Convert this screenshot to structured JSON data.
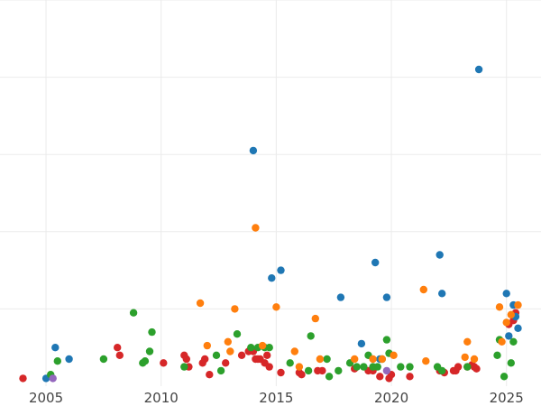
{
  "chart_data": {
    "type": "scatter",
    "title": "",
    "xlabel": "",
    "ylabel": "",
    "xlim": [
      2003.0,
      2026.5
    ],
    "ylim": [
      0,
      100
    ],
    "x_ticks": [
      2005,
      2010,
      2015,
      2020,
      2025
    ],
    "y_gridlines": [
      20,
      40,
      60,
      80,
      100
    ],
    "grid": true,
    "legend": "none",
    "series": [
      {
        "color": "#d62728",
        "points": [
          [
            2004.0,
            2
          ],
          [
            2008.1,
            10
          ],
          [
            2008.2,
            8
          ],
          [
            2010.1,
            6
          ],
          [
            2011.0,
            8
          ],
          [
            2011.1,
            7
          ],
          [
            2011.2,
            5
          ],
          [
            2011.8,
            6
          ],
          [
            2011.9,
            7
          ],
          [
            2012.1,
            3
          ],
          [
            2012.8,
            6
          ],
          [
            2013.5,
            8
          ],
          [
            2013.8,
            9
          ],
          [
            2014.0,
            9
          ],
          [
            2014.1,
            7
          ],
          [
            2014.2,
            7
          ],
          [
            2014.3,
            7
          ],
          [
            2014.5,
            6
          ],
          [
            2014.6,
            8
          ],
          [
            2014.7,
            5
          ],
          [
            2015.2,
            3.5
          ],
          [
            2016.0,
            3.5
          ],
          [
            2016.1,
            3
          ],
          [
            2016.8,
            4
          ],
          [
            2017.0,
            4
          ],
          [
            2018.4,
            4.5
          ],
          [
            2019.0,
            4
          ],
          [
            2019.2,
            4
          ],
          [
            2019.5,
            2.5
          ],
          [
            2019.9,
            2
          ],
          [
            2020.0,
            3
          ],
          [
            2020.8,
            2.5
          ],
          [
            2022.1,
            4
          ],
          [
            2022.3,
            3.5
          ],
          [
            2022.7,
            4
          ],
          [
            2022.8,
            4
          ],
          [
            2022.9,
            5
          ],
          [
            2023.3,
            5
          ],
          [
            2023.5,
            5.5
          ],
          [
            2023.6,
            5
          ],
          [
            2023.7,
            4.5
          ],
          [
            2025.1,
            16
          ],
          [
            2025.3,
            17
          ],
          [
            2025.4,
            19
          ]
        ]
      },
      {
        "color": "#1f77b4",
        "points": [
          [
            2005.0,
            2
          ],
          [
            2005.4,
            10
          ],
          [
            2006.0,
            7
          ],
          [
            2014.0,
            61
          ],
          [
            2014.8,
            28
          ],
          [
            2015.2,
            30
          ],
          [
            2017.8,
            23
          ],
          [
            2018.7,
            11
          ],
          [
            2019.3,
            32
          ],
          [
            2019.5,
            7
          ],
          [
            2019.8,
            23
          ],
          [
            2022.1,
            34
          ],
          [
            2022.2,
            24
          ],
          [
            2023.8,
            82
          ],
          [
            2025.0,
            24
          ],
          [
            2025.1,
            13
          ],
          [
            2025.3,
            21
          ],
          [
            2025.4,
            18
          ],
          [
            2025.5,
            15
          ]
        ]
      },
      {
        "color": "#2ca02c",
        "points": [
          [
            2005.2,
            3
          ],
          [
            2005.5,
            6.5
          ],
          [
            2007.5,
            7
          ],
          [
            2008.8,
            19
          ],
          [
            2009.2,
            6
          ],
          [
            2009.3,
            6.5
          ],
          [
            2009.5,
            9
          ],
          [
            2009.6,
            14
          ],
          [
            2011.0,
            5
          ],
          [
            2012.4,
            8
          ],
          [
            2012.6,
            4
          ],
          [
            2013.3,
            13.5
          ],
          [
            2013.9,
            10
          ],
          [
            2014.2,
            10
          ],
          [
            2014.5,
            10
          ],
          [
            2014.7,
            10
          ],
          [
            2015.6,
            6
          ],
          [
            2016.4,
            4
          ],
          [
            2016.5,
            13
          ],
          [
            2017.2,
            7
          ],
          [
            2017.3,
            2.5
          ],
          [
            2017.7,
            4
          ],
          [
            2018.2,
            6
          ],
          [
            2018.5,
            5
          ],
          [
            2018.8,
            5
          ],
          [
            2019.0,
            8
          ],
          [
            2019.2,
            5
          ],
          [
            2019.4,
            5
          ],
          [
            2019.6,
            7
          ],
          [
            2019.8,
            12
          ],
          [
            2019.9,
            8.5
          ],
          [
            2020.4,
            5
          ],
          [
            2020.8,
            5
          ],
          [
            2022.0,
            5
          ],
          [
            2022.2,
            4
          ],
          [
            2023.3,
            5
          ],
          [
            2024.6,
            8
          ],
          [
            2024.7,
            12
          ],
          [
            2024.9,
            2.5
          ],
          [
            2025.2,
            6
          ],
          [
            2025.3,
            11.5
          ]
        ]
      },
      {
        "color": "#ff7f0e",
        "points": [
          [
            2011.7,
            21.5
          ],
          [
            2012.0,
            10.5
          ],
          [
            2012.9,
            11.5
          ],
          [
            2013.0,
            9
          ],
          [
            2013.2,
            20
          ],
          [
            2014.1,
            41
          ],
          [
            2014.4,
            10.5
          ],
          [
            2015.0,
            20.5
          ],
          [
            2015.8,
            9
          ],
          [
            2016.0,
            5
          ],
          [
            2016.7,
            17.5
          ],
          [
            2016.9,
            7
          ],
          [
            2018.4,
            7
          ],
          [
            2019.2,
            7
          ],
          [
            2019.6,
            7
          ],
          [
            2020.1,
            8
          ],
          [
            2021.4,
            25
          ],
          [
            2021.5,
            6.5
          ],
          [
            2023.2,
            7.5
          ],
          [
            2023.3,
            11.5
          ],
          [
            2023.6,
            7
          ],
          [
            2024.7,
            20.5
          ],
          [
            2024.8,
            11.5
          ],
          [
            2025.0,
            16.5
          ],
          [
            2025.2,
            18.5
          ],
          [
            2025.5,
            21
          ]
        ]
      },
      {
        "color": "#9467bd",
        "points": [
          [
            2005.3,
            2
          ],
          [
            2019.8,
            4
          ]
        ]
      }
    ]
  }
}
